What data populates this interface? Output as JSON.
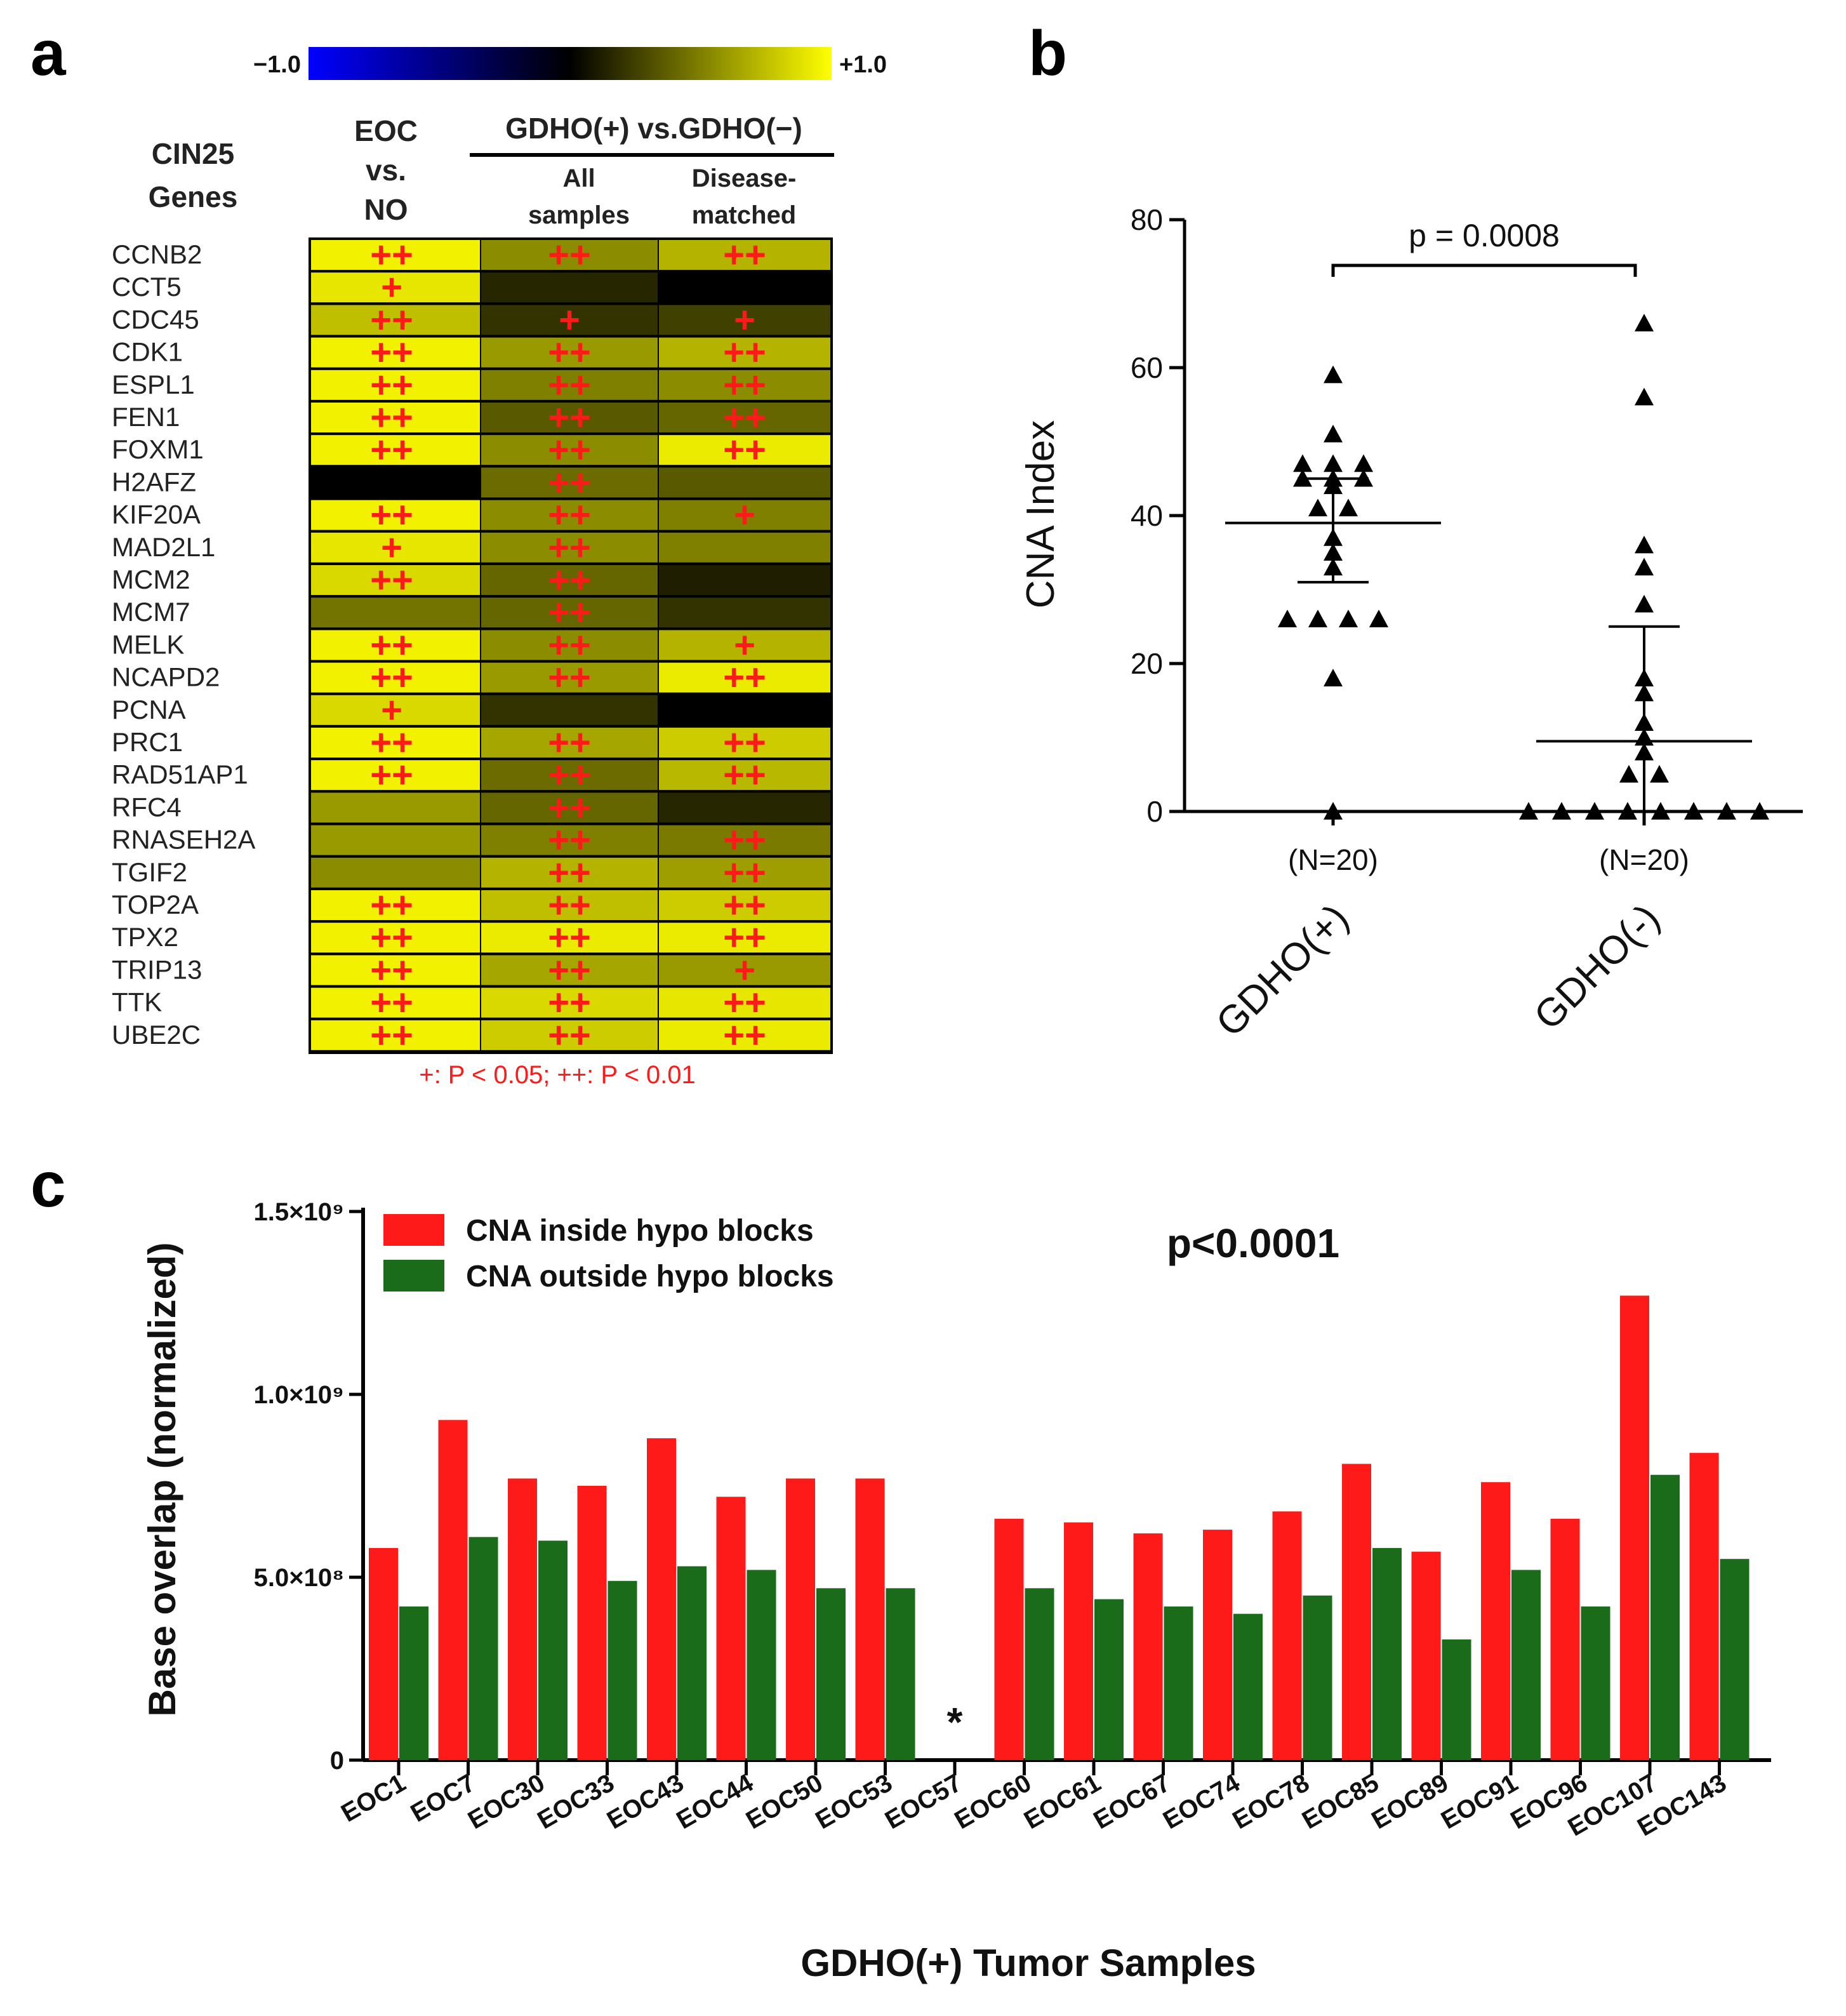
{
  "chart_data": [
    {
      "panel": "a",
      "type": "heatmap",
      "color_scale": {
        "min_label": "−1.0",
        "max_label": "+1.0",
        "min": -1.0,
        "max": 1.0,
        "colors": [
          "#0000ff",
          "#000000",
          "#ffff00"
        ]
      },
      "row_header": [
        "CIN25",
        "Genes"
      ],
      "columns": [
        {
          "label_lines": [
            "EOC",
            "vs.",
            "NO"
          ]
        },
        {
          "label_lines": [
            "All",
            "samples"
          ]
        },
        {
          "label_lines": [
            "Disease-",
            "matched"
          ]
        }
      ],
      "group_header": "GDHO(+) vs.GDHO(−)",
      "genes": [
        "CCNB2",
        "CCT5",
        "CDC45",
        "CDK1",
        "ESPL1",
        "FEN1",
        "FOXM1",
        "H2AFZ",
        "KIF20A",
        "MAD2L1",
        "MCM2",
        "MCM7",
        "MELK",
        "NCAPD2",
        "PCNA",
        "PRC1",
        "RAD51AP1",
        "RFC4",
        "RNASEH2A",
        "TGIF2",
        "TOP2A",
        "TPX2",
        "TRIP13",
        "TTK",
        "UBE2C"
      ],
      "values": [
        [
          0.95,
          0.55,
          0.7
        ],
        [
          0.9,
          0.15,
          0.0
        ],
        [
          0.75,
          0.2,
          0.25
        ],
        [
          0.95,
          0.6,
          0.7
        ],
        [
          0.95,
          0.5,
          0.55
        ],
        [
          0.95,
          0.35,
          0.4
        ],
        [
          0.95,
          0.55,
          0.92
        ],
        [
          0.0,
          0.42,
          0.35
        ],
        [
          0.95,
          0.55,
          0.5
        ],
        [
          0.9,
          0.55,
          0.5
        ],
        [
          0.85,
          0.4,
          0.12
        ],
        [
          0.45,
          0.4,
          0.2
        ],
        [
          0.95,
          0.55,
          0.7
        ],
        [
          0.95,
          0.6,
          0.92
        ],
        [
          0.85,
          0.2,
          0.0
        ],
        [
          0.95,
          0.65,
          0.8
        ],
        [
          0.95,
          0.42,
          0.72
        ],
        [
          0.6,
          0.4,
          0.15
        ],
        [
          0.6,
          0.5,
          0.48
        ],
        [
          0.55,
          0.7,
          0.62
        ],
        [
          0.95,
          0.75,
          0.8
        ],
        [
          0.95,
          0.92,
          0.92
        ],
        [
          0.95,
          0.65,
          0.6
        ],
        [
          0.95,
          0.85,
          0.9
        ],
        [
          0.95,
          0.8,
          0.92
        ]
      ],
      "significance": [
        [
          "++",
          "++",
          "++"
        ],
        [
          "+",
          "",
          ""
        ],
        [
          "++",
          "+",
          "+"
        ],
        [
          "++",
          "++",
          "++"
        ],
        [
          "++",
          "++",
          "++"
        ],
        [
          "++",
          "++",
          "++"
        ],
        [
          "++",
          "++",
          "++"
        ],
        [
          "",
          "++",
          ""
        ],
        [
          "++",
          "++",
          "+"
        ],
        [
          "+",
          "++",
          ""
        ],
        [
          "++",
          "++",
          ""
        ],
        [
          "",
          "++",
          ""
        ],
        [
          "++",
          "++",
          "+"
        ],
        [
          "++",
          "++",
          "++"
        ],
        [
          "+",
          "",
          ""
        ],
        [
          "++",
          "++",
          "++"
        ],
        [
          "++",
          "++",
          "++"
        ],
        [
          "",
          "++",
          ""
        ],
        [
          "",
          "++",
          "++"
        ],
        [
          "",
          "++",
          "++"
        ],
        [
          "++",
          "++",
          "++"
        ],
        [
          "++",
          "++",
          "++"
        ],
        [
          "++",
          "++",
          "+"
        ],
        [
          "++",
          "++",
          "++"
        ],
        [
          "++",
          "++",
          "++"
        ]
      ],
      "footnote": "+:  P < 0.05;   ++:  P < 0.01"
    },
    {
      "panel": "b",
      "type": "scatter",
      "ylabel": "CNA Index",
      "ylim": [
        0,
        80
      ],
      "yticks": [
        0,
        20,
        40,
        60,
        80
      ],
      "groups": [
        {
          "name": "GDHO(+)",
          "n_label": "(N=20)",
          "values": [
            59,
            51,
            47,
            47,
            47,
            45,
            45,
            45,
            44,
            41,
            41,
            37,
            35,
            33,
            26,
            26,
            26,
            26,
            18,
            0
          ],
          "mean": 39,
          "sd_range": [
            31,
            45
          ]
        },
        {
          "name": "GDHO(-)",
          "n_label": "(N=20)",
          "values": [
            66,
            56,
            36,
            33,
            28,
            18,
            16,
            12,
            10,
            8,
            5,
            5,
            0,
            0,
            0,
            0,
            0,
            0,
            0,
            0
          ],
          "mean": 9.5,
          "sd_range": [
            0,
            25
          ]
        }
      ],
      "annotation": "p = 0.0008"
    },
    {
      "panel": "c",
      "type": "bar",
      "title": "p<0.0001",
      "xlabel": "GDHO(+) Tumor Samples",
      "ylabel": "Base overlap (normalized)",
      "ylim": [
        0,
        1500000000.0
      ],
      "yticks": [
        {
          "value": 0,
          "label": "0"
        },
        {
          "value": 500000000.0,
          "label": "5.0×10⁸"
        },
        {
          "value": 1000000000.0,
          "label": "1.0×10⁹"
        },
        {
          "value": 1500000000.0,
          "label": "1.5×10⁹"
        }
      ],
      "categories": [
        "EOC1",
        "EOC7",
        "EOC30",
        "EOC33",
        "EOC43",
        "EOC44",
        "EOC50",
        "EOC53",
        "EOC57",
        "EOC60",
        "EOC61",
        "EOC67",
        "EOC74",
        "EOC78",
        "EOC85",
        "EOC89",
        "EOC91",
        "EOC96",
        "EOC107",
        "EOC143"
      ],
      "series": [
        {
          "name": "CNA inside hypo blocks",
          "color": "#ff1a1a",
          "values": [
            580000000.0,
            930000000.0,
            770000000.0,
            750000000.0,
            880000000.0,
            720000000.0,
            770000000.0,
            770000000.0,
            0,
            660000000.0,
            650000000.0,
            620000000.0,
            630000000.0,
            680000000.0,
            810000000.0,
            570000000.0,
            760000000.0,
            660000000.0,
            1270000000.0,
            840000000.0
          ]
        },
        {
          "name": "CNA outside hypo blocks",
          "color": "#1a6b1a",
          "values": [
            420000000.0,
            610000000.0,
            600000000.0,
            490000000.0,
            530000000.0,
            520000000.0,
            470000000.0,
            470000000.0,
            0,
            470000000.0,
            440000000.0,
            420000000.0,
            400000000.0,
            450000000.0,
            580000000.0,
            330000000.0,
            520000000.0,
            420000000.0,
            780000000.0,
            550000000.0
          ]
        }
      ],
      "missing_marker": {
        "category": "EOC57",
        "symbol": "*"
      }
    }
  ],
  "panel_letters": {
    "a": "a",
    "b": "b",
    "c": "c"
  }
}
